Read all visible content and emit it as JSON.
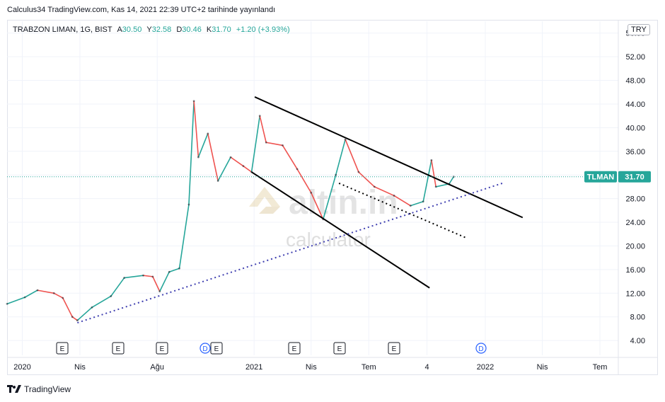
{
  "header": {
    "publisher": "Calculus34 TradingView.com, Kas 14, 2021 22:39 UTC+2 tarihinde yayınlandı"
  },
  "legend": {
    "symbol": "TRABZON LIMAN, 1G, BIST",
    "open_label": "A",
    "open": "30.50",
    "high_label": "Y",
    "high": "32.58",
    "low_label": "D",
    "low": "30.46",
    "close_label": "K",
    "close": "31.70",
    "change": "+1.20 (+3.93%)"
  },
  "currency": "TRY",
  "price_tag": {
    "ticker": "TLMAN",
    "value": "31.70"
  },
  "watermark": {
    "brand": "altin.in",
    "sub": "calculator"
  },
  "footer": {
    "brand": "TradingView"
  },
  "event_markers": [
    "E",
    "E",
    "E",
    "D",
    "E",
    "E",
    "E",
    "E",
    "D"
  ],
  "chart_data": {
    "type": "line",
    "title": "TRABZON LIMAN, 1G, BIST",
    "y_ticks": [
      "4.00",
      "8.00",
      "12.00",
      "16.00",
      "20.00",
      "24.00",
      "28.00",
      "32.00",
      "36.00",
      "40.00",
      "44.00",
      "48.00",
      "52.00",
      "56.00"
    ],
    "ylim": [
      1.5,
      58
    ],
    "x_ticks": [
      "2020",
      "Nis",
      "Ağu",
      "2021",
      "Nis",
      "Tem",
      "4",
      "2022",
      "Nis",
      "Tem"
    ],
    "x_tick_dates": [
      "2020-01-01",
      "2020-04-01",
      "2020-08-01",
      "2021-01-01",
      "2021-04-01",
      "2021-07-01",
      "2021-10-01",
      "2022-01-01",
      "2022-04-01",
      "2022-07-01"
    ],
    "xlim": [
      "2019-12-08",
      "2022-07-30"
    ],
    "last_price": 31.7,
    "colors": {
      "up": "#26a69a",
      "down": "#ef5350",
      "price_line": "#26a69a",
      "trend": "#000000",
      "support": "#3f3fb0"
    },
    "price_series": [
      {
        "date": "2019-12-08",
        "price": 10.2
      },
      {
        "date": "2020-01-05",
        "price": 11.3
      },
      {
        "date": "2020-01-25",
        "price": 12.5
      },
      {
        "date": "2020-02-20",
        "price": 12.0
      },
      {
        "date": "2020-03-05",
        "price": 11.2
      },
      {
        "date": "2020-03-20",
        "price": 8.0
      },
      {
        "date": "2020-03-28",
        "price": 7.4
      },
      {
        "date": "2020-04-20",
        "price": 9.6
      },
      {
        "date": "2020-05-20",
        "price": 11.5
      },
      {
        "date": "2020-06-10",
        "price": 14.6
      },
      {
        "date": "2020-07-10",
        "price": 15.0
      },
      {
        "date": "2020-07-25",
        "price": 14.8
      },
      {
        "date": "2020-08-05",
        "price": 12.3
      },
      {
        "date": "2020-08-20",
        "price": 15.6
      },
      {
        "date": "2020-09-05",
        "price": 16.2
      },
      {
        "date": "2020-09-20",
        "price": 27.0
      },
      {
        "date": "2020-09-28",
        "price": 44.5
      },
      {
        "date": "2020-10-05",
        "price": 35.0
      },
      {
        "date": "2020-10-20",
        "price": 39.0
      },
      {
        "date": "2020-11-05",
        "price": 31.0
      },
      {
        "date": "2020-11-25",
        "price": 35.0
      },
      {
        "date": "2020-12-15",
        "price": 33.5
      },
      {
        "date": "2020-12-28",
        "price": 32.5
      },
      {
        "date": "2021-01-10",
        "price": 42.0
      },
      {
        "date": "2021-01-20",
        "price": 37.5
      },
      {
        "date": "2021-02-15",
        "price": 37.0
      },
      {
        "date": "2021-03-10",
        "price": 33.0
      },
      {
        "date": "2021-04-01",
        "price": 29.0
      },
      {
        "date": "2021-04-20",
        "price": 24.5
      },
      {
        "date": "2021-05-10",
        "price": 32.0
      },
      {
        "date": "2021-05-25",
        "price": 38.0
      },
      {
        "date": "2021-06-15",
        "price": 32.5
      },
      {
        "date": "2021-07-10",
        "price": 30.0
      },
      {
        "date": "2021-08-10",
        "price": 28.5
      },
      {
        "date": "2021-09-05",
        "price": 26.8
      },
      {
        "date": "2021-09-25",
        "price": 27.5
      },
      {
        "date": "2021-10-08",
        "price": 34.5
      },
      {
        "date": "2021-10-15",
        "price": 30.0
      },
      {
        "date": "2021-11-05",
        "price": 30.5
      },
      {
        "date": "2021-11-12",
        "price": 31.7
      }
    ],
    "trendlines": [
      {
        "name": "upper-resistance",
        "style": "solid",
        "points": [
          {
            "date": "2021-01-02",
            "price": 45.2
          },
          {
            "date": "2022-03-01",
            "price": 24.8
          }
        ]
      },
      {
        "name": "lower-channel",
        "style": "solid",
        "points": [
          {
            "date": "2020-12-28",
            "price": 32.5
          },
          {
            "date": "2021-10-05",
            "price": 12.9
          }
        ]
      },
      {
        "name": "inner-support",
        "style": "dotted",
        "points": [
          {
            "date": "2021-05-15",
            "price": 30.6
          },
          {
            "date": "2021-12-01",
            "price": 21.4
          }
        ]
      },
      {
        "name": "long-support",
        "style": "dotted",
        "points": [
          {
            "date": "2020-03-28",
            "price": 7.0
          },
          {
            "date": "2022-01-28",
            "price": 30.6
          }
        ]
      }
    ]
  }
}
